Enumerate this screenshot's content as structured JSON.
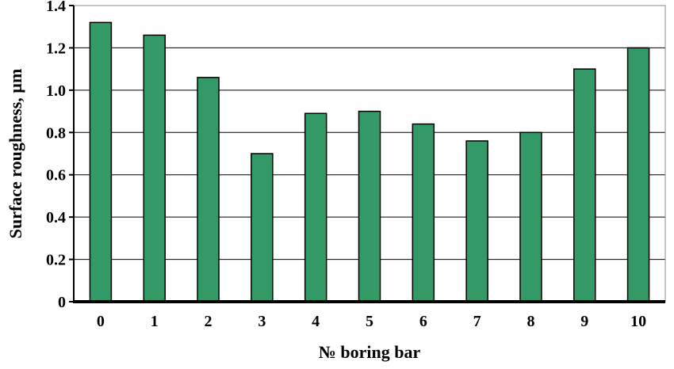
{
  "chart_data": {
    "type": "bar",
    "title": "",
    "xlabel": "№ boring bar",
    "ylabel": "Surface roughness, µm",
    "categories": [
      "0",
      "1",
      "2",
      "3",
      "4",
      "5",
      "6",
      "7",
      "8",
      "9",
      "10"
    ],
    "values": [
      1.32,
      1.26,
      1.06,
      0.7,
      0.89,
      0.9,
      0.84,
      0.76,
      0.8,
      1.1,
      1.2
    ],
    "ylim": [
      0,
      1.4
    ],
    "yticks": [
      "0",
      "0.2",
      "0.4",
      "0.6",
      "0.8",
      "1.0",
      "1.2",
      "1.4"
    ],
    "grid": true,
    "legend": false,
    "bar_color": "#339966"
  }
}
